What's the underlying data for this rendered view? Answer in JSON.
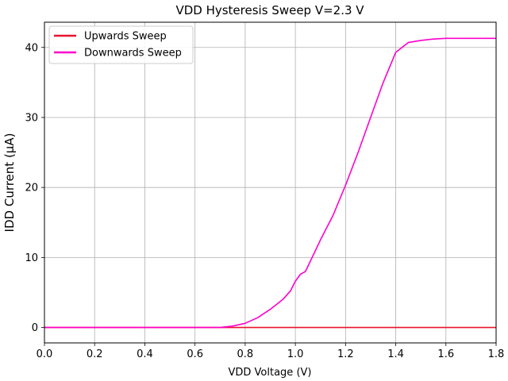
{
  "chart_data": {
    "type": "line",
    "title": "VDD Hysteresis Sweep V=2.3 V",
    "xlabel": "VDD Voltage (V)",
    "ylabel": "IDD Current (μA)",
    "xlim": [
      0.0,
      1.8
    ],
    "ylim": [
      -2.2,
      43.6
    ],
    "xticks": [
      0.0,
      0.2,
      0.4,
      0.6,
      0.8,
      1.0,
      1.2,
      1.4,
      1.6,
      1.8
    ],
    "xtick_labels": [
      "0.0",
      "0.2",
      "0.4",
      "0.6",
      "0.8",
      "1.0",
      "1.2",
      "1.4",
      "1.6",
      "1.8"
    ],
    "yticks": [
      0,
      10,
      20,
      30,
      40
    ],
    "ytick_labels": [
      "0",
      "10",
      "20",
      "30",
      "40"
    ],
    "grid": true,
    "legend_position": "top-left",
    "series": [
      {
        "name": "Upwards Sweep",
        "color": "#e8142c",
        "x": [
          0.0,
          0.3,
          0.6,
          0.9,
          1.2,
          1.5,
          1.8
        ],
        "y": [
          0.0,
          0.0,
          0.0,
          0.0,
          0.0,
          0.0,
          0.0
        ]
      },
      {
        "name": "Downwards Sweep",
        "color": "#ff00cc",
        "x": [
          0.0,
          0.7,
          0.75,
          0.8,
          0.85,
          0.9,
          0.95,
          0.98,
          1.0,
          1.02,
          1.04,
          1.08,
          1.1,
          1.15,
          1.2,
          1.25,
          1.3,
          1.35,
          1.4,
          1.45,
          1.5,
          1.55,
          1.6,
          1.7,
          1.8
        ],
        "y": [
          0.0,
          0.0,
          0.2,
          0.6,
          1.4,
          2.6,
          4.0,
          5.2,
          6.6,
          7.6,
          8.0,
          11.0,
          12.5,
          16.0,
          20.3,
          25.0,
          30.0,
          35.0,
          39.3,
          40.7,
          41.0,
          41.2,
          41.3,
          41.3,
          41.3
        ]
      }
    ]
  }
}
